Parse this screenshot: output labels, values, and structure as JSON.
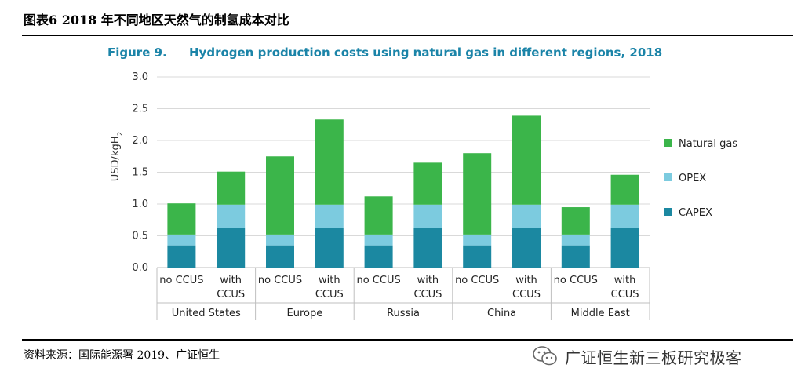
{
  "header": {
    "report_title": "图表6 2018 年不同地区天然气的制氢成本对比"
  },
  "footer": {
    "source": "资料来源：国际能源署 2019、广证恒生",
    "watermark": "广证恒生新三板研究极客",
    "watermark_icon": "wechat-icon"
  },
  "colors": {
    "natural_gas": "#3bb54a",
    "opex": "#7ccbdf",
    "capex": "#1b88a1"
  },
  "chart_data": {
    "type": "bar",
    "stacked": true,
    "figure_label": "Figure 9.",
    "title": "Hydrogen production costs using natural gas in different regions, 2018",
    "ylabel": "USD/kgH2",
    "ylim": [
      0,
      3.0
    ],
    "yticks": [
      "0.0",
      "0.5",
      "1.0",
      "1.5",
      "2.0",
      "2.5",
      "3.0"
    ],
    "grid": true,
    "legend_position": "right",
    "regions": [
      "United States",
      "Europe",
      "Russia",
      "China",
      "Middle East"
    ],
    "categories": [
      {
        "region": "United States",
        "line1": "no CCUS",
        "line2": ""
      },
      {
        "region": "United States",
        "line1": "with",
        "line2": "CCUS"
      },
      {
        "region": "Europe",
        "line1": "no CCUS",
        "line2": ""
      },
      {
        "region": "Europe",
        "line1": "with",
        "line2": "CCUS"
      },
      {
        "region": "Russia",
        "line1": "no CCUS",
        "line2": ""
      },
      {
        "region": "Russia",
        "line1": "with",
        "line2": "CCUS"
      },
      {
        "region": "China",
        "line1": "no CCUS",
        "line2": ""
      },
      {
        "region": "China",
        "line1": "with",
        "line2": "CCUS"
      },
      {
        "region": "Middle East",
        "line1": "no CCUS",
        "line2": ""
      },
      {
        "region": "Middle East",
        "line1": "with",
        "line2": "CCUS"
      }
    ],
    "series": [
      {
        "name": "CAPEX",
        "values": [
          0.35,
          0.62,
          0.35,
          0.62,
          0.35,
          0.62,
          0.35,
          0.62,
          0.35,
          0.62
        ]
      },
      {
        "name": "OPEX",
        "values": [
          0.17,
          0.37,
          0.17,
          0.37,
          0.17,
          0.37,
          0.17,
          0.37,
          0.17,
          0.37
        ]
      },
      {
        "name": "Natural gas",
        "values": [
          0.49,
          0.52,
          1.23,
          1.34,
          0.6,
          0.66,
          1.28,
          1.4,
          0.43,
          0.47
        ]
      }
    ],
    "legend": [
      "Natural gas",
      "OPEX",
      "CAPEX"
    ]
  }
}
